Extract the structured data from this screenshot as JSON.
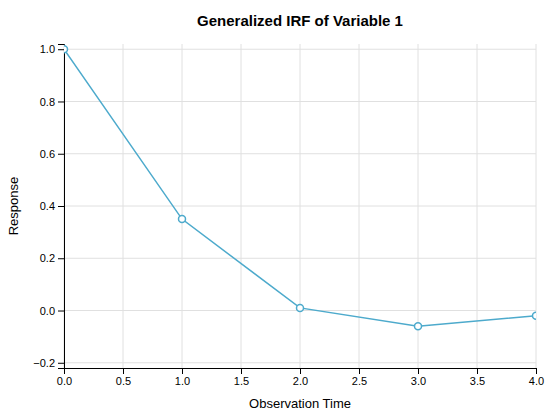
{
  "chart_data": {
    "type": "line",
    "title": "Generalized IRF of Variable 1",
    "xlabel": "Observation Time",
    "ylabel": "Response",
    "x": [
      0,
      1,
      2,
      3,
      4
    ],
    "values": [
      1.0,
      0.35,
      0.01,
      -0.06,
      -0.02
    ],
    "color": "#4DAACC",
    "marker": "circle",
    "xlim": [
      0,
      4.0
    ],
    "ylim": [
      -0.22,
      1.02
    ],
    "xticks": [
      {
        "value": 0,
        "label": "0.0"
      },
      0.5,
      {
        "value": 1,
        "label": "1.0"
      },
      1.5,
      {
        "value": 2,
        "label": "2.0"
      },
      2.5,
      {
        "value": 3,
        "label": "3.0"
      },
      3.5,
      {
        "value": 4,
        "label": "4.0"
      }
    ],
    "yticks": [
      {
        "value": -0.2,
        "label": "−0.2"
      },
      {
        "value": 0.0,
        "label": "0.0"
      },
      0.2,
      0.4,
      0.6,
      0.8,
      {
        "value": 1.0,
        "label": "1.0"
      }
    ],
    "grid": true
  }
}
